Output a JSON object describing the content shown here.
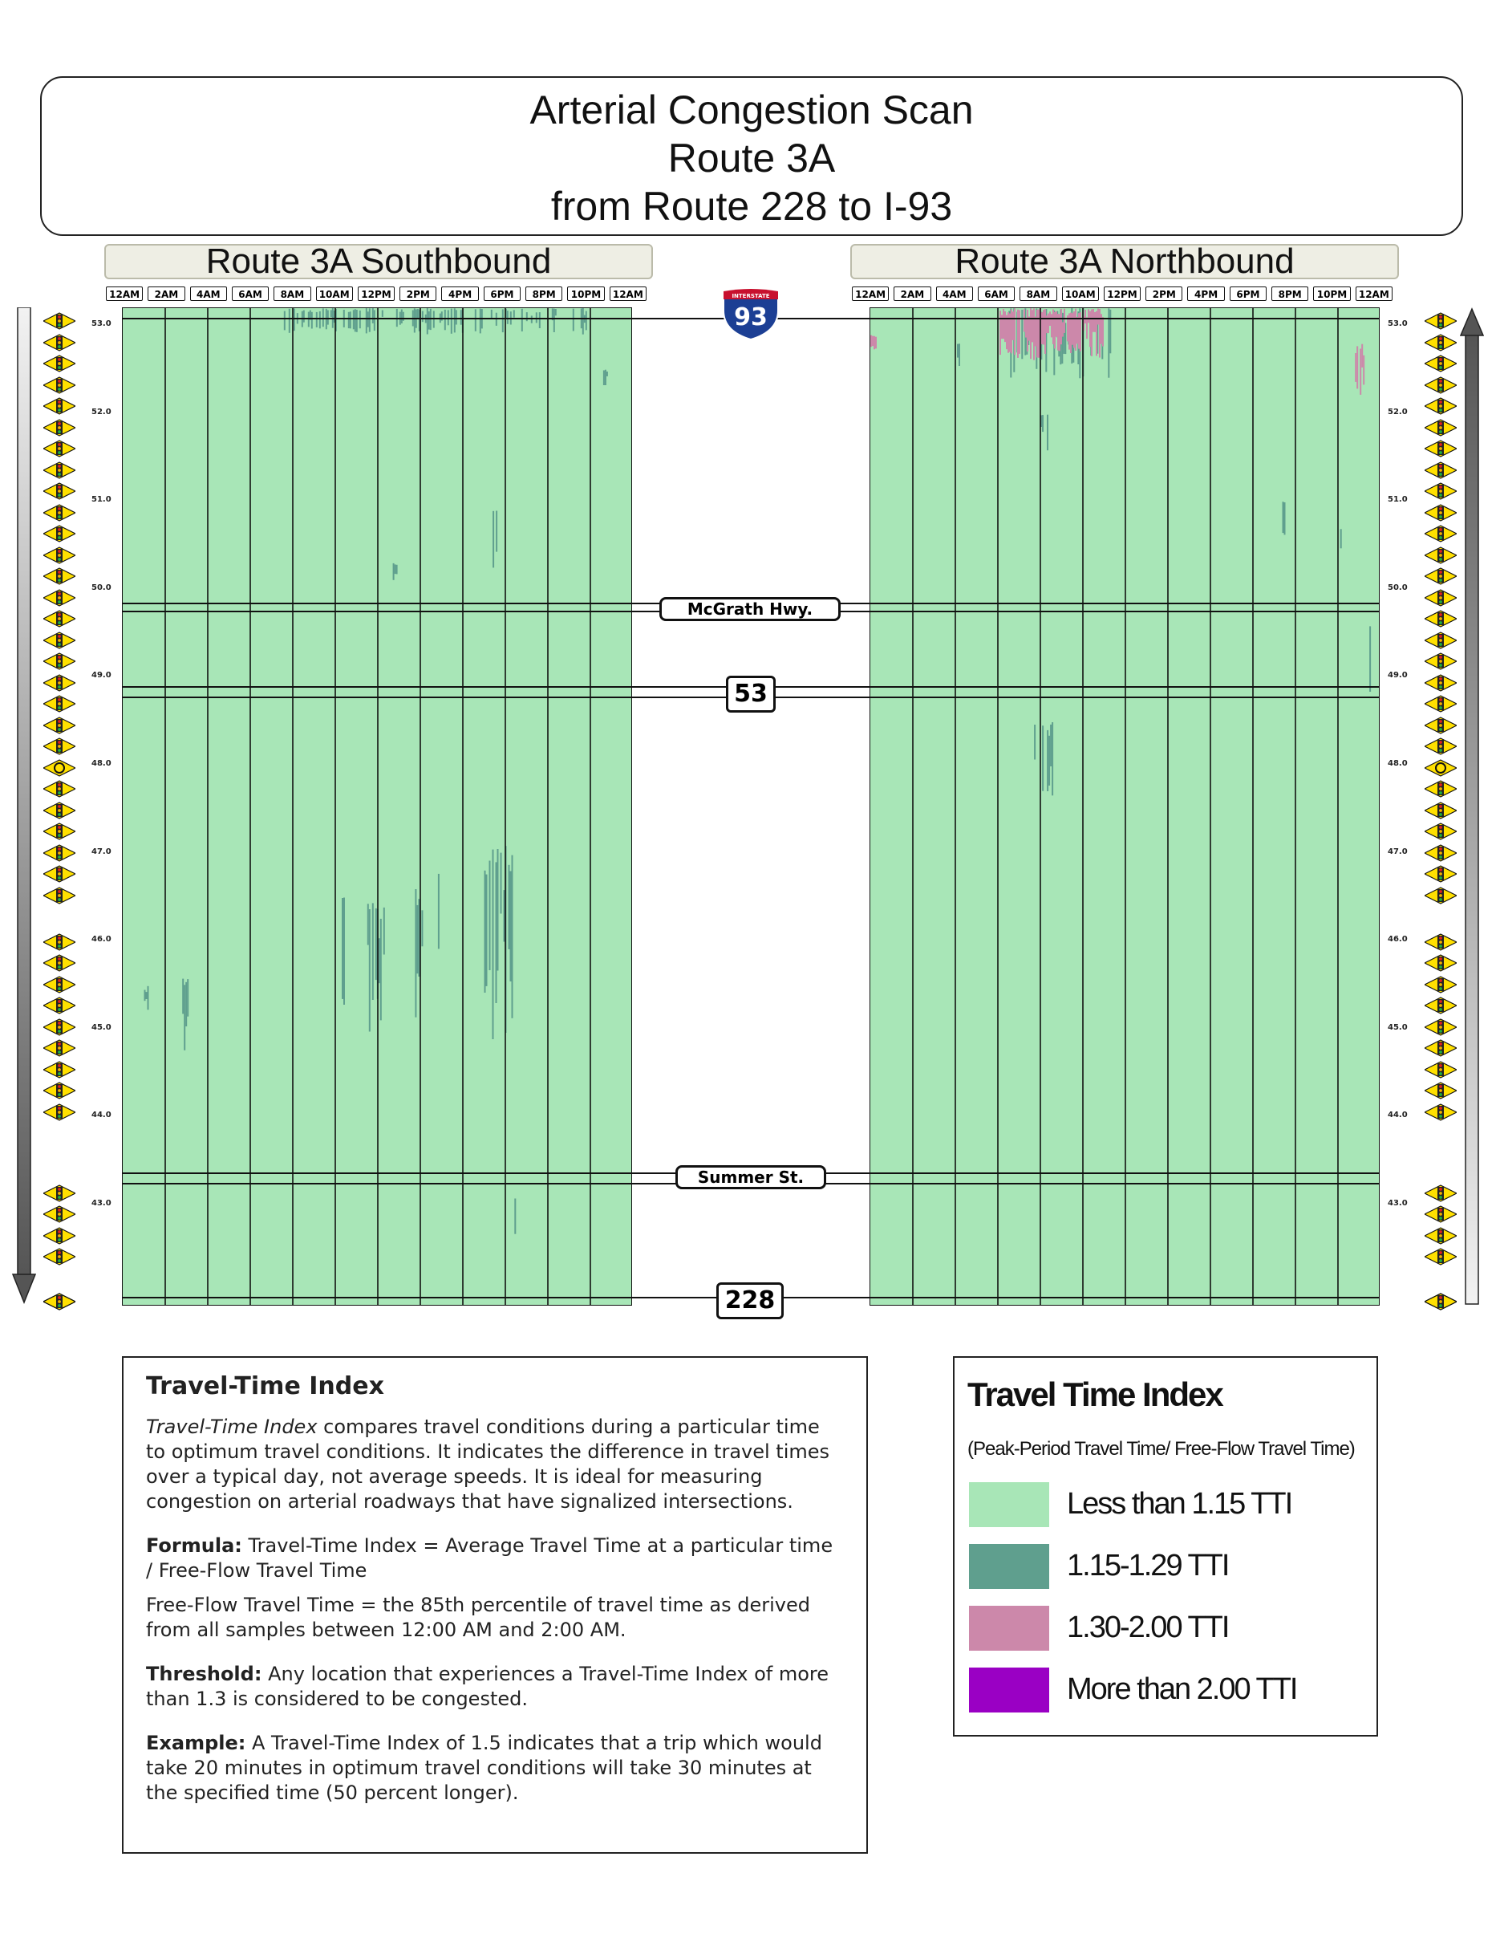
{
  "header": {
    "title_line1": "Arterial Congestion Scan",
    "title_line2": "Route 3A",
    "title_line3": "from Route 228 to I-93"
  },
  "panels": {
    "southbound_label": "Route 3A Southbound",
    "northbound_label": "Route 3A Northbound"
  },
  "time_labels": [
    "12AM",
    "2AM",
    "4AM",
    "6AM",
    "8AM",
    "10AM",
    "12PM",
    "2PM",
    "4PM",
    "6PM",
    "8PM",
    "10PM",
    "12AM"
  ],
  "landmarks": {
    "i93_top": "INTERSTATE",
    "i93_number": "93",
    "mcgrath": "McGrath Hwy.",
    "route53": "53",
    "summer": "Summer St.",
    "route228": "228"
  },
  "colors": {
    "lt_115": "#a8e6b7",
    "r115_129": "#5f9f8e",
    "r130_200": "#cc88aa",
    "gt_200": "#9a00c4",
    "i93_blue": "#1c3f94",
    "i93_red": "#c8102e",
    "signal_yellow": "#ffe000"
  },
  "chart_data": {
    "type": "heatmap",
    "x_axis": {
      "unit": "time of day",
      "range": [
        "12AM",
        "12AM"
      ],
      "ticks": [
        "12AM",
        "2AM",
        "4AM",
        "6AM",
        "8AM",
        "10AM",
        "12PM",
        "2PM",
        "4PM",
        "6PM",
        "8PM",
        "10PM",
        "12AM"
      ]
    },
    "y_axis": {
      "unit": "mile marker",
      "range": [
        42.0,
        53.2
      ],
      "ticks": [
        "53.0",
        "52.0",
        "51.0",
        "50.0",
        "49.0",
        "48.0",
        "47.0",
        "46.0",
        "45.0",
        "44.0",
        "43.0"
      ]
    },
    "panels": [
      {
        "name": "Route 3A Southbound",
        "base_category": "Less than 1.15 TTI",
        "patches": [
          {
            "t0": 7.5,
            "t1": 22,
            "m0": 52.9,
            "m1": 53.2,
            "cat": "1.15-1.29 TTI",
            "density": 0.45
          },
          {
            "t0": 1.0,
            "t1": 1.2,
            "m0": 45.2,
            "m1": 45.5,
            "cat": "1.15-1.29 TTI",
            "density": 0.8
          },
          {
            "t0": 2.8,
            "t1": 3.1,
            "m0": 44.5,
            "m1": 45.6,
            "cat": "1.15-1.29 TTI",
            "density": 0.7
          },
          {
            "t0": 10.3,
            "t1": 10.6,
            "m0": 45.2,
            "m1": 46.5,
            "cat": "1.15-1.29 TTI",
            "density": 0.5
          },
          {
            "t0": 11.5,
            "t1": 12.3,
            "m0": 44.7,
            "m1": 46.5,
            "cat": "1.15-1.29 TTI",
            "density": 0.6
          },
          {
            "t0": 13.6,
            "t1": 14.1,
            "m0": 45.1,
            "m1": 46.6,
            "cat": "1.15-1.29 TTI",
            "density": 0.6
          },
          {
            "t0": 14.6,
            "t1": 15.0,
            "m0": 45.4,
            "m1": 46.8,
            "cat": "1.15-1.29 TTI",
            "density": 0.5
          },
          {
            "t0": 17.0,
            "t1": 18.6,
            "m0": 44.8,
            "m1": 47.1,
            "cat": "1.15-1.29 TTI",
            "density": 0.6
          },
          {
            "t0": 17.4,
            "t1": 17.7,
            "m0": 50.1,
            "m1": 50.9,
            "cat": "1.15-1.29 TTI",
            "density": 0.5
          },
          {
            "t0": 18.2,
            "t1": 18.5,
            "m0": 42.6,
            "m1": 43.1,
            "cat": "1.15-1.29 TTI",
            "density": 0.5
          },
          {
            "t0": 12.7,
            "t1": 12.9,
            "m0": 50.1,
            "m1": 50.3,
            "cat": "1.15-1.29 TTI",
            "density": 0.6
          },
          {
            "t0": 22.6,
            "t1": 22.8,
            "m0": 52.3,
            "m1": 52.5,
            "cat": "1.15-1.29 TTI",
            "density": 0.6
          }
        ]
      },
      {
        "name": "Route 3A Northbound",
        "base_category": "Less than 1.15 TTI",
        "patches": [
          {
            "t0": 6.5,
            "t1": 11.5,
            "m0": 52.4,
            "m1": 53.2,
            "cat": "1.15-1.29 TTI",
            "density": 0.5
          },
          {
            "t0": 6.0,
            "t1": 11.0,
            "m0": 52.6,
            "m1": 53.2,
            "cat": "1.30-2.00 TTI",
            "density": 0.85
          },
          {
            "t0": 0.0,
            "t1": 0.3,
            "m0": 52.7,
            "m1": 52.9,
            "cat": "1.30-2.00 TTI",
            "density": 0.8
          },
          {
            "t0": 22.8,
            "t1": 23.4,
            "m0": 52.1,
            "m1": 52.8,
            "cat": "1.30-2.00 TTI",
            "density": 0.5
          },
          {
            "t0": 7.7,
            "t1": 8.9,
            "m0": 47.5,
            "m1": 48.5,
            "cat": "1.15-1.29 TTI",
            "density": 0.6
          },
          {
            "t0": 8.0,
            "t1": 8.4,
            "m0": 51.5,
            "m1": 52.0,
            "cat": "1.15-1.29 TTI",
            "density": 0.4
          },
          {
            "t0": 4.0,
            "t1": 4.2,
            "m0": 52.4,
            "m1": 52.8,
            "cat": "1.15-1.29 TTI",
            "density": 0.6
          },
          {
            "t0": 19.3,
            "t1": 19.5,
            "m0": 50.6,
            "m1": 51.0,
            "cat": "1.15-1.29 TTI",
            "density": 0.6
          },
          {
            "t0": 22.1,
            "t1": 22.3,
            "m0": 50.3,
            "m1": 50.8,
            "cat": "1.15-1.29 TTI",
            "density": 0.6
          },
          {
            "t0": 23.4,
            "t1": 23.6,
            "m0": 48.8,
            "m1": 49.6,
            "cat": "1.15-1.29 TTI",
            "density": 0.6
          }
        ]
      }
    ],
    "legend": [
      "Less than 1.15 TTI",
      "1.15-1.29 TTI",
      "1.30-2.00 TTI",
      "More than 2.00 TTI"
    ]
  },
  "info": {
    "heading": "Travel-Time Index",
    "def_term": "Travel-Time Index",
    "def_rest": " compares travel conditions during a particular time to optimum travel conditions. It indicates the difference in travel times over a typical day, not average speeds. It is ideal for measuring congestion on arterial roadways that have signalized intersections.",
    "formula_label": "Formula:",
    "formula_text": " Travel-Time Index = Average Travel Time at a particular time / Free-Flow Travel Time",
    "freeflow_text": "Free-Flow Travel Time = the 85th percentile of travel time as derived from all samples between 12:00 AM and 2:00 AM.",
    "threshold_label": "Threshold:",
    "threshold_text": " Any location that experiences a Travel-Time Index of more than 1.3 is considered to be congested.",
    "example_label": "Example:",
    "example_text": " A Travel-Time Index of 1.5 indicates that a trip which would take 20 minutes in optimum travel conditions will take 30 minutes at the specified time (50 percent longer)."
  },
  "legend": {
    "title": "Travel Time Index",
    "subtitle": "(Peak-Period Travel Time/ Free-Flow Travel Time)",
    "items": [
      {
        "label": "Less than 1.15 TTI",
        "color": "#a8e6b7"
      },
      {
        "label": "1.15-1.29 TTI",
        "color": "#5f9f8e"
      },
      {
        "label": "1.30-2.00 TTI",
        "color": "#cc88aa"
      },
      {
        "label": "More than 2.00 TTI",
        "color": "#9a00c4"
      }
    ]
  },
  "signals": {
    "left_traffic_lights": 44,
    "left_roundabouts": 2,
    "right_traffic_lights": 44,
    "right_roundabouts": 2
  }
}
